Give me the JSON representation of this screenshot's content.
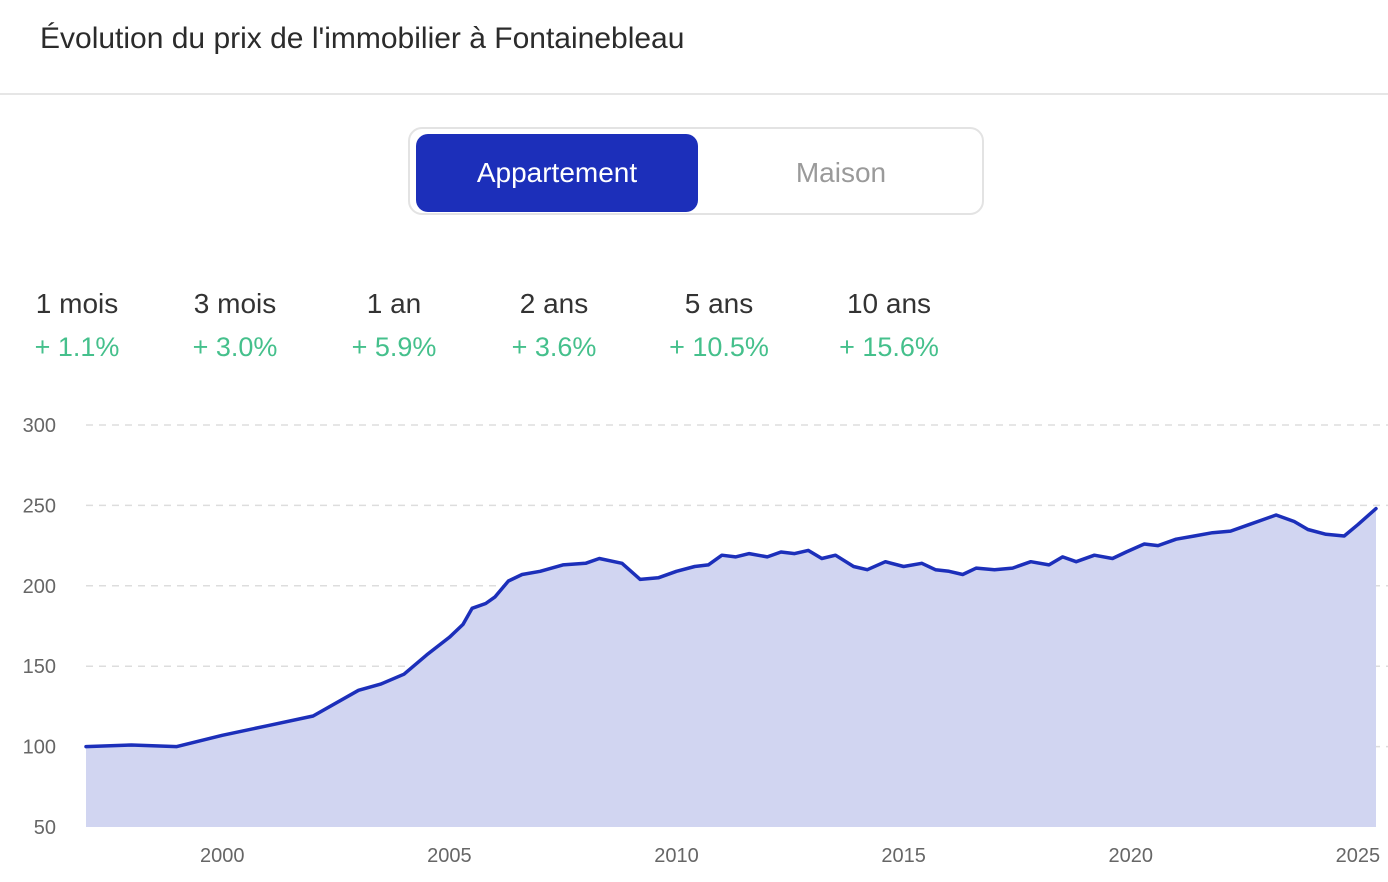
{
  "header": {
    "title": "Évolution du prix de l'immobilier à Fontainebleau"
  },
  "toggle": {
    "options": [
      "Appartement",
      "Maison"
    ],
    "selected": "Appartement"
  },
  "stats": [
    {
      "label": "1 mois",
      "value": "+ 1.1%"
    },
    {
      "label": "3 mois",
      "value": "+ 3.0%"
    },
    {
      "label": "1 an",
      "value": "+ 5.9%"
    },
    {
      "label": "2 ans",
      "value": "+ 3.6%"
    },
    {
      "label": "5 ans",
      "value": "+ 10.5%"
    },
    {
      "label": "10 ans",
      "value": "+ 15.6%"
    }
  ],
  "colors": {
    "accent": "#1c2fba",
    "area_fill": "#d1d5f1",
    "positive": "#45c08c",
    "grid": "#dddddd"
  },
  "chart_data": {
    "type": "area",
    "title": "",
    "xlabel": "",
    "ylabel": "",
    "xlim": [
      1997.0,
      2025.4
    ],
    "ylim": [
      50,
      300
    ],
    "yticks": [
      50,
      100,
      150,
      200,
      250,
      300
    ],
    "xticks": [
      2000,
      2005,
      2010,
      2015,
      2020,
      2025
    ],
    "grid": true,
    "legend": "none",
    "series": [
      {
        "x": [
          1997.0,
          1998.0,
          1999.0,
          2000.0,
          2001.0,
          2002.0,
          2003.0,
          2003.5,
          2004.0,
          2004.5,
          2005.0,
          2005.3,
          2005.5,
          2005.8,
          2006.0,
          2006.3,
          2006.6,
          2007.0,
          2007.5,
          2008.0,
          2008.3,
          2008.8,
          2009.2,
          2009.6,
          2010.0,
          2010.4,
          2010.7,
          2011.0,
          2011.3,
          2011.6,
          2012.0,
          2012.3,
          2012.6,
          2012.9,
          2013.2,
          2013.5,
          2013.9,
          2014.2,
          2014.6,
          2015.0,
          2015.4,
          2015.7,
          2016.0,
          2016.3,
          2016.6,
          2017.0,
          2017.4,
          2017.8,
          2018.2,
          2018.5,
          2018.8,
          2019.2,
          2019.6,
          2019.9,
          2020.3,
          2020.6,
          2021.0,
          2021.4,
          2021.8,
          2022.2,
          2022.6,
          2022.9,
          2023.2,
          2023.6,
          2023.9,
          2024.3,
          2024.7,
          2025.0,
          2025.4
        ],
        "y": [
          100,
          101,
          100,
          107,
          113,
          119,
          135,
          139,
          145,
          157,
          168,
          176,
          186,
          189,
          193,
          203,
          207,
          209,
          213,
          214,
          217,
          214,
          204,
          205,
          209,
          212,
          213,
          219,
          218,
          220,
          218,
          221,
          220,
          222,
          217,
          219,
          212,
          210,
          215,
          212,
          214,
          210,
          209,
          207,
          211,
          210,
          211,
          215,
          213,
          218,
          215,
          219,
          217,
          221,
          226,
          225,
          229,
          231,
          233,
          234,
          238,
          241,
          244,
          240,
          235,
          232,
          231,
          238,
          248
        ]
      }
    ]
  }
}
